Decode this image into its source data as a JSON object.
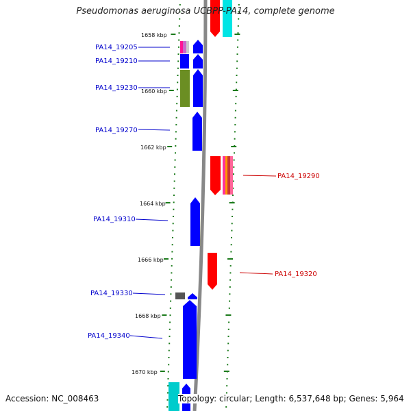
{
  "title": "Pseudomonas aeruginosa UCBPP-PA14, complete genome",
  "accession": "Accession: NC_008463",
  "topology": "Topology: circular; Length: 6,537,648 bp; Genes: 5,964",
  "ticks": [
    {
      "label": "1658 kbp"
    },
    {
      "label": "1660 kbp"
    },
    {
      "label": "1662 kbp"
    },
    {
      "label": "1664 kbp"
    },
    {
      "label": "1666 kbp"
    },
    {
      "label": "1668 kbp"
    },
    {
      "label": "1670 kbp"
    }
  ],
  "gene_labels": [
    {
      "name": "PA14_19205",
      "strand": "minus"
    },
    {
      "name": "PA14_19210",
      "strand": "minus"
    },
    {
      "name": "PA14_19230",
      "strand": "minus"
    },
    {
      "name": "PA14_19270",
      "strand": "minus"
    },
    {
      "name": "PA14_19290",
      "strand": "plus"
    },
    {
      "name": "PA14_19310",
      "strand": "minus"
    },
    {
      "name": "PA14_19320",
      "strand": "plus"
    },
    {
      "name": "PA14_19330",
      "strand": "minus"
    },
    {
      "name": "PA14_19340",
      "strand": "minus"
    }
  ],
  "colors": {
    "minus_strand": "#0000ff",
    "plus_strand": "#ff0000",
    "minus_label": "#0000cc",
    "plus_label": "#cc0000",
    "backbone": "#888888",
    "tick": "#1a7a1a",
    "cyan": "#00e5e5",
    "olive": "#6b8e23",
    "gray_gene": "#555555"
  }
}
